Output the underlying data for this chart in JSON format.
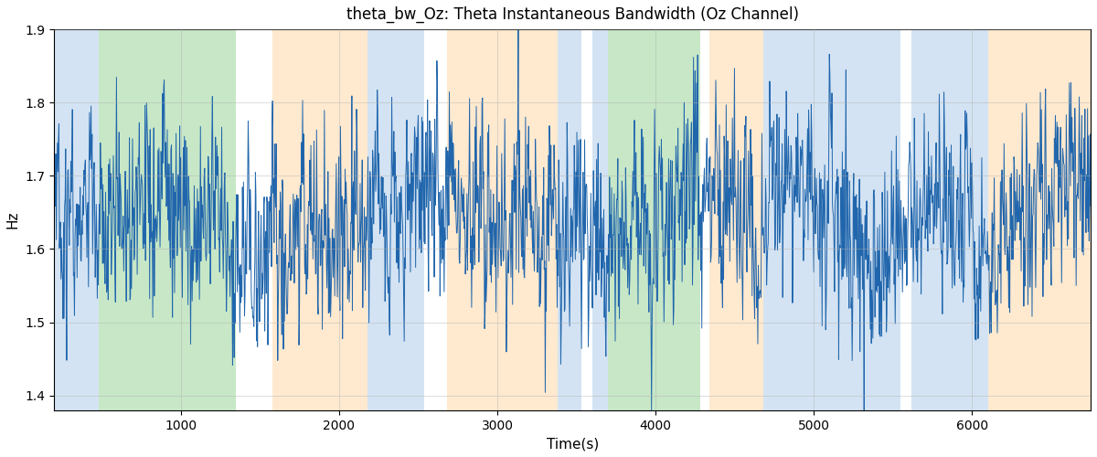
{
  "title": "theta_bw_Oz: Theta Instantaneous Bandwidth (Oz Channel)",
  "xlabel": "Time(s)",
  "ylabel": "Hz",
  "ylim": [
    1.38,
    1.9
  ],
  "xlim": [
    200,
    6750
  ],
  "line_color": "#2166ac",
  "line_width": 0.7,
  "background_bands": [
    {
      "xmin": 200,
      "xmax": 480,
      "color": "#a8c8e8",
      "alpha": 0.5
    },
    {
      "xmin": 480,
      "xmax": 1350,
      "color": "#90d090",
      "alpha": 0.5
    },
    {
      "xmin": 1350,
      "xmax": 1580,
      "color": "#ffffff",
      "alpha": 0.0
    },
    {
      "xmin": 1580,
      "xmax": 2180,
      "color": "#ffd5a0",
      "alpha": 0.5
    },
    {
      "xmin": 2180,
      "xmax": 2540,
      "color": "#a8c8e8",
      "alpha": 0.5
    },
    {
      "xmin": 2540,
      "xmax": 2680,
      "color": "#ffffff",
      "alpha": 0.0
    },
    {
      "xmin": 2680,
      "xmax": 3380,
      "color": "#ffd5a0",
      "alpha": 0.5
    },
    {
      "xmin": 3380,
      "xmax": 3530,
      "color": "#a8c8e8",
      "alpha": 0.5
    },
    {
      "xmin": 3530,
      "xmax": 3600,
      "color": "#ffffff",
      "alpha": 0.0
    },
    {
      "xmin": 3600,
      "xmax": 3700,
      "color": "#a8c8e8",
      "alpha": 0.5
    },
    {
      "xmin": 3700,
      "xmax": 4280,
      "color": "#90d090",
      "alpha": 0.5
    },
    {
      "xmin": 4280,
      "xmax": 4340,
      "color": "#ffffff",
      "alpha": 0.0
    },
    {
      "xmin": 4340,
      "xmax": 4680,
      "color": "#ffd5a0",
      "alpha": 0.5
    },
    {
      "xmin": 4680,
      "xmax": 5550,
      "color": "#a8c8e8",
      "alpha": 0.5
    },
    {
      "xmin": 5550,
      "xmax": 5620,
      "color": "#ffffff",
      "alpha": 0.0
    },
    {
      "xmin": 5620,
      "xmax": 6100,
      "color": "#a8c8e8",
      "alpha": 0.5
    },
    {
      "xmin": 6100,
      "xmax": 6750,
      "color": "#ffd5a0",
      "alpha": 0.5
    }
  ],
  "grid": true,
  "grid_color": "#b0b0b0",
  "grid_alpha": 0.6,
  "seed": 42,
  "n_points": 2000,
  "t_start": 200,
  "t_end": 6750,
  "signal_mean": 1.635,
  "title_fontsize": 12,
  "bg_color": "#f0f4f8"
}
